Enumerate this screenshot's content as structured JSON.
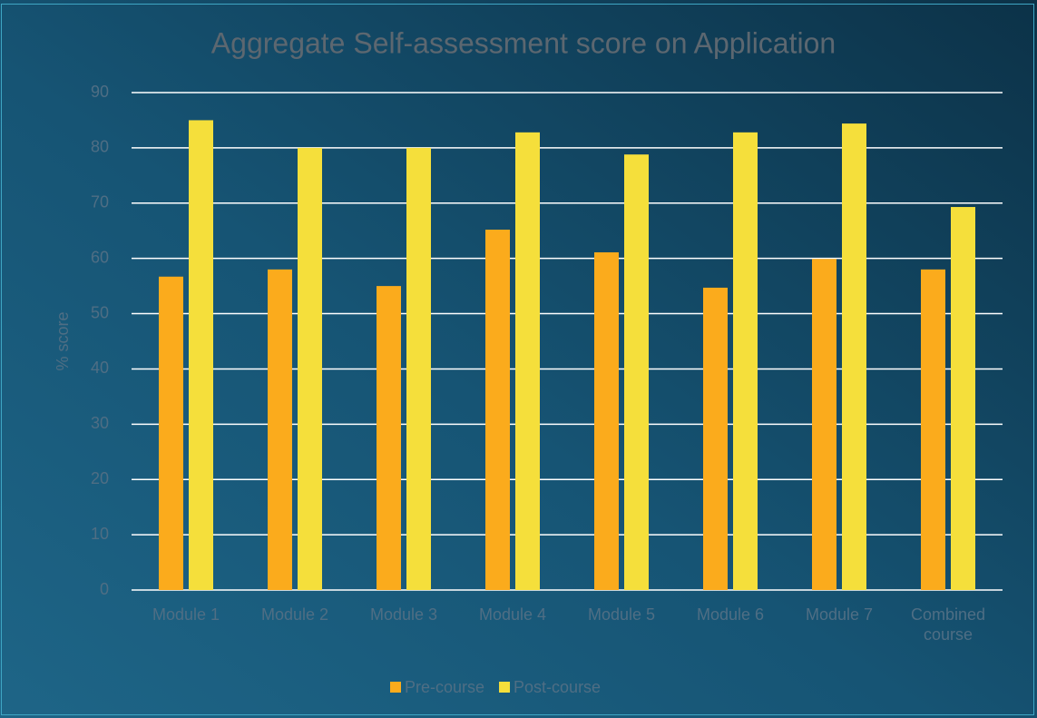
{
  "chart_data": {
    "type": "bar",
    "title": "Aggregate Self-assessment score on Application",
    "ylabel": "% score",
    "categories": [
      "Module 1",
      "Module 2",
      "Module 3",
      "Module 4",
      "Module 5",
      "Module 6",
      "Module 7",
      "Combined course"
    ],
    "series": [
      {
        "name": "Pre-course",
        "color": "#fbab1c",
        "values": [
          56.7,
          58,
          55,
          65.2,
          61.1,
          54.7,
          59.9,
          58
        ]
      },
      {
        "name": "Post-course",
        "color": "#f5df3b",
        "values": [
          85,
          80,
          80,
          82.8,
          78.8,
          82.8,
          84.4,
          69.3
        ]
      }
    ],
    "ylim": [
      0,
      90
    ],
    "yticks": [
      0,
      10,
      20,
      30,
      40,
      50,
      60,
      70,
      80,
      90
    ],
    "grid": true,
    "legend": "bottom"
  }
}
